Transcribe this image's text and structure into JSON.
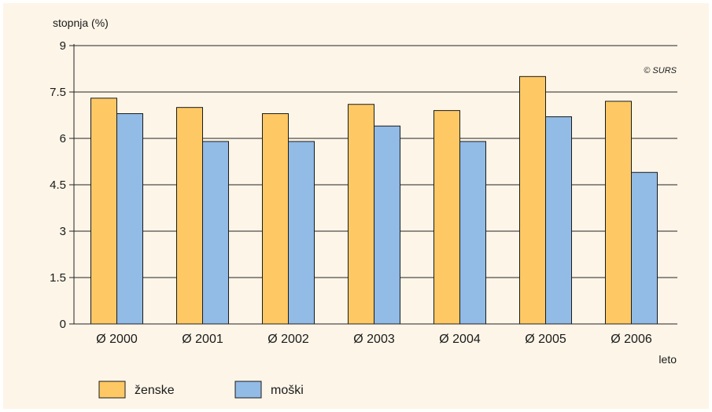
{
  "chart_data": {
    "type": "bar",
    "ylabel": "stopnja (%)",
    "xlabel": "leto",
    "credit": "© SURS",
    "ylim": [
      0,
      9
    ],
    "yticks": [
      "0",
      "1.5",
      "3",
      "4.5",
      "6",
      "7.5",
      "9"
    ],
    "grid": true,
    "legend_position": "bottom-left",
    "categories": [
      "Ø 2000",
      "Ø 2001",
      "Ø 2002",
      "Ø 2003",
      "Ø 2004",
      "Ø 2005",
      "Ø 2006"
    ],
    "series": [
      {
        "name": "ženske",
        "color": "#fec965",
        "values": [
          7.3,
          7.0,
          6.8,
          7.1,
          6.9,
          8.0,
          7.2
        ]
      },
      {
        "name": "moški",
        "color": "#92bbe6",
        "values": [
          6.8,
          5.9,
          5.9,
          6.4,
          5.9,
          6.7,
          4.9
        ]
      }
    ]
  }
}
